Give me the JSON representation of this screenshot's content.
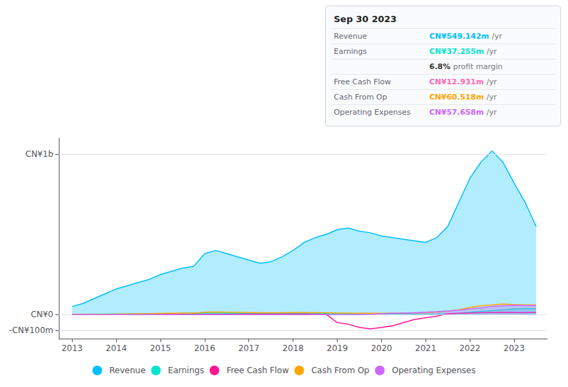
{
  "chart_data": {
    "type": "line",
    "x": [
      2013,
      2013.25,
      2013.5,
      2013.75,
      2014,
      2014.25,
      2014.5,
      2014.75,
      2015,
      2015.25,
      2015.5,
      2015.75,
      2016,
      2016.25,
      2016.5,
      2016.75,
      2017,
      2017.25,
      2017.5,
      2017.75,
      2018,
      2018.25,
      2018.5,
      2018.75,
      2019,
      2019.25,
      2019.5,
      2019.75,
      2020,
      2020.25,
      2020.5,
      2020.75,
      2021,
      2021.25,
      2021.5,
      2021.75,
      2022,
      2022.25,
      2022.5,
      2022.75,
      2023,
      2023.25,
      2023.5
    ],
    "series": [
      {
        "name": "Revenue",
        "type": "area",
        "color": "#00bfff",
        "values": [
          50,
          70,
          100,
          130,
          160,
          180,
          200,
          220,
          250,
          270,
          290,
          300,
          380,
          400,
          380,
          360,
          340,
          320,
          330,
          360,
          400,
          450,
          480,
          500,
          530,
          540,
          520,
          510,
          490,
          480,
          470,
          460,
          450,
          480,
          550,
          700,
          850,
          950,
          1020,
          950,
          820,
          700,
          549
        ]
      },
      {
        "name": "Earnings",
        "type": "area",
        "color": "#00e5cc",
        "values": [
          2,
          2,
          3,
          3,
          4,
          4,
          5,
          5,
          6,
          6,
          7,
          8,
          9,
          9,
          8,
          8,
          7,
          7,
          7,
          7,
          8,
          8,
          8,
          7,
          6,
          6,
          5,
          5,
          4,
          3,
          3,
          3,
          2,
          3,
          5,
          8,
          15,
          20,
          25,
          30,
          35,
          37,
          37
        ]
      },
      {
        "name": "Free Cash Flow",
        "type": "line",
        "color": "#ff1493",
        "values": [
          0,
          0,
          0,
          0,
          0,
          0,
          0,
          0,
          1,
          1,
          1,
          1,
          2,
          2,
          2,
          2,
          3,
          3,
          3,
          3,
          3,
          3,
          2,
          1,
          -50,
          -60,
          -80,
          -90,
          -80,
          -70,
          -50,
          -30,
          -20,
          -10,
          5,
          8,
          10,
          12,
          13,
          14,
          13,
          12,
          13
        ]
      },
      {
        "name": "Cash From Op",
        "type": "line",
        "color": "#ffa500",
        "values": [
          1,
          1,
          2,
          2,
          3,
          4,
          5,
          6,
          7,
          8,
          9,
          10,
          15,
          16,
          15,
          14,
          13,
          12,
          12,
          12,
          13,
          13,
          12,
          12,
          10,
          9,
          8,
          8,
          8,
          8,
          9,
          10,
          12,
          15,
          20,
          30,
          45,
          55,
          60,
          65,
          62,
          60,
          60
        ]
      },
      {
        "name": "Operating Expenses",
        "type": "area",
        "color": "#cc66ff",
        "values": [
          0,
          0,
          0,
          0,
          0,
          0,
          0,
          0,
          0,
          0,
          0,
          0,
          0,
          0,
          0,
          0,
          0,
          0,
          0,
          0,
          0,
          0,
          0,
          0,
          0,
          0,
          0,
          2,
          5,
          8,
          10,
          12,
          15,
          18,
          22,
          28,
          35,
          42,
          50,
          55,
          58,
          57,
          57
        ]
      }
    ],
    "xlim": [
      2012.7,
      2023.75
    ],
    "xticks": [
      2013,
      2014,
      2015,
      2016,
      2017,
      2018,
      2019,
      2020,
      2021,
      2022,
      2023
    ],
    "ylim": [
      -150,
      1100
    ],
    "yticks": [
      {
        "value": -100,
        "label": "-CN¥100m"
      },
      {
        "value": 0,
        "label": "CN¥0"
      },
      {
        "value": 1000,
        "label": "CN¥1b"
      }
    ],
    "grid": true,
    "legend": "bottom",
    "annotations": [
      {
        "text": "Sep 30 2023"
      },
      {
        "label": "Revenue",
        "value": "CN¥549.142m",
        "suffix": "/yr",
        "color": "#00bfff"
      },
      {
        "label": "Earnings",
        "value": "CN¥37.255m",
        "suffix": "/yr",
        "color": "#00e5cc"
      },
      {
        "value": "6.8%",
        "suffix": "profit margin",
        "color": "#333333"
      },
      {
        "label": "Free Cash Flow",
        "value": "CN¥12.931m",
        "suffix": "/yr",
        "color": "#ff69b4"
      },
      {
        "label": "Cash From Op",
        "value": "CN¥60.518m",
        "suffix": "/yr",
        "color": "#ffa500"
      },
      {
        "label": "Operating Expenses",
        "value": "CN¥57.658m",
        "suffix": "/yr",
        "color": "#cc66ff"
      }
    ]
  }
}
